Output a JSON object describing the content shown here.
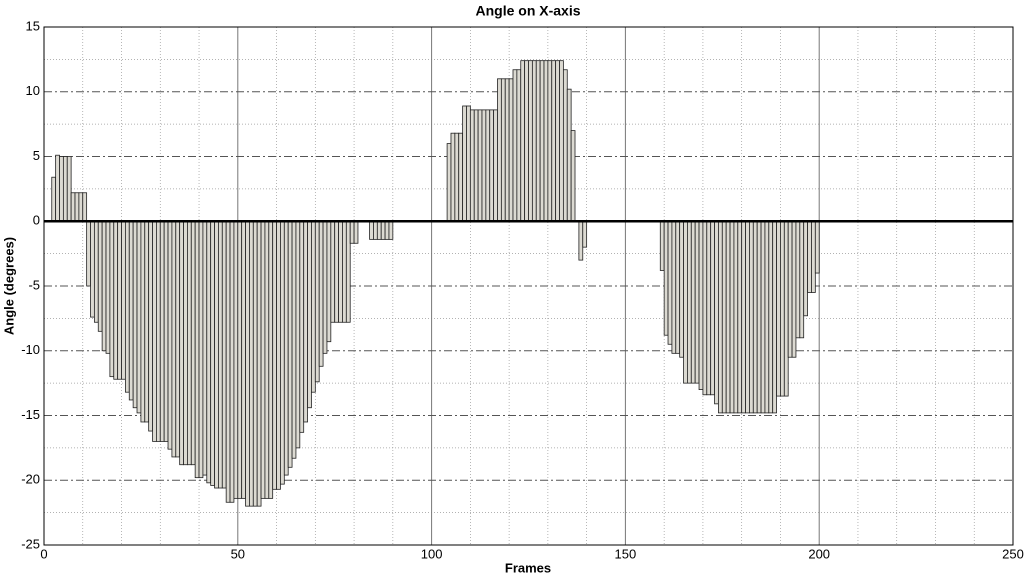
{
  "chart_data": {
    "type": "bar",
    "title": "Angle on X-axis",
    "xlabel": "Frames",
    "ylabel": "Angle (degrees)",
    "x": [
      2,
      3,
      4,
      5,
      6,
      7,
      8,
      9,
      10,
      11,
      12,
      13,
      14,
      15,
      16,
      17,
      18,
      19,
      20,
      21,
      22,
      23,
      24,
      25,
      26,
      27,
      28,
      29,
      30,
      31,
      32,
      33,
      34,
      35,
      36,
      37,
      38,
      39,
      40,
      41,
      42,
      43,
      44,
      45,
      46,
      47,
      48,
      49,
      50,
      51,
      52,
      53,
      54,
      55,
      56,
      57,
      58,
      59,
      60,
      61,
      62,
      63,
      64,
      65,
      66,
      67,
      68,
      69,
      70,
      71,
      72,
      73,
      74,
      75,
      76,
      77,
      78,
      79,
      80,
      84,
      85,
      86,
      87,
      88,
      89,
      104,
      105,
      106,
      107,
      108,
      109,
      110,
      111,
      112,
      113,
      114,
      115,
      116,
      117,
      118,
      119,
      120,
      121,
      122,
      123,
      124,
      125,
      126,
      127,
      128,
      129,
      130,
      131,
      132,
      133,
      134,
      135,
      136,
      138,
      139,
      159,
      160,
      161,
      162,
      163,
      164,
      165,
      166,
      167,
      168,
      169,
      170,
      171,
      172,
      173,
      174,
      175,
      176,
      177,
      178,
      179,
      180,
      181,
      182,
      183,
      184,
      185,
      186,
      187,
      188,
      189,
      190,
      191,
      192,
      193,
      194,
      195,
      196,
      197,
      198,
      199
    ],
    "values": [
      3.4,
      5.1,
      5.0,
      5.0,
      5.0,
      2.2,
      2.2,
      2.2,
      2.2,
      -5.0,
      -7.4,
      -7.8,
      -8.5,
      -10.0,
      -10.2,
      -12.0,
      -12.2,
      -12.2,
      -12.2,
      -13.2,
      -13.8,
      -14.4,
      -14.8,
      -15.5,
      -15.5,
      -16.2,
      -17.0,
      -17.0,
      -17.0,
      -17.0,
      -17.6,
      -18.2,
      -18.2,
      -18.8,
      -18.8,
      -18.8,
      -18.8,
      -19.8,
      -19.8,
      -19.6,
      -20.2,
      -20.4,
      -20.6,
      -20.6,
      -20.6,
      -21.7,
      -21.7,
      -21.4,
      -21.4,
      -21.4,
      -22.0,
      -22.0,
      -22.0,
      -22.0,
      -21.4,
      -21.4,
      -21.4,
      -20.7,
      -20.7,
      -20.3,
      -19.6,
      -19.0,
      -18.3,
      -17.5,
      -16.3,
      -15.5,
      -14.4,
      -13.2,
      -12.4,
      -11.2,
      -10.2,
      -9.3,
      -7.8,
      -7.8,
      -7.8,
      -7.8,
      -7.8,
      -1.7,
      -1.7,
      -1.4,
      -1.4,
      -1.4,
      -1.4,
      -1.4,
      -1.4,
      6.0,
      6.8,
      6.8,
      6.8,
      8.9,
      8.9,
      8.6,
      8.6,
      8.6,
      8.6,
      8.6,
      8.6,
      8.6,
      11.0,
      11.0,
      11.0,
      11.0,
      11.7,
      11.7,
      12.4,
      12.4,
      12.4,
      12.4,
      12.4,
      12.4,
      12.4,
      12.4,
      12.4,
      12.4,
      12.4,
      11.7,
      10.2,
      7.0,
      -3.0,
      -2.0,
      -3.8,
      -8.8,
      -9.5,
      -10.2,
      -10.2,
      -10.5,
      -12.5,
      -12.5,
      -12.5,
      -12.5,
      -13.0,
      -13.4,
      -13.4,
      -13.4,
      -14.1,
      -14.8,
      -14.8,
      -14.8,
      -14.8,
      -14.8,
      -14.8,
      -14.8,
      -14.8,
      -14.8,
      -14.8,
      -14.8,
      -14.8,
      -14.8,
      -14.8,
      -14.8,
      -13.5,
      -13.5,
      -13.5,
      -10.5,
      -10.5,
      -9.0,
      -9.0,
      -7.3,
      -5.5,
      -5.5,
      -4.0
    ],
    "color": "#dcdad2",
    "xlim": [
      0,
      250
    ],
    "xticks": [
      0,
      50,
      100,
      150,
      200,
      250
    ],
    "ylim": [
      -25,
      15
    ],
    "yticks": [
      -25,
      -20,
      -15,
      -10,
      -5,
      0,
      5,
      10,
      15
    ],
    "grid": true
  }
}
